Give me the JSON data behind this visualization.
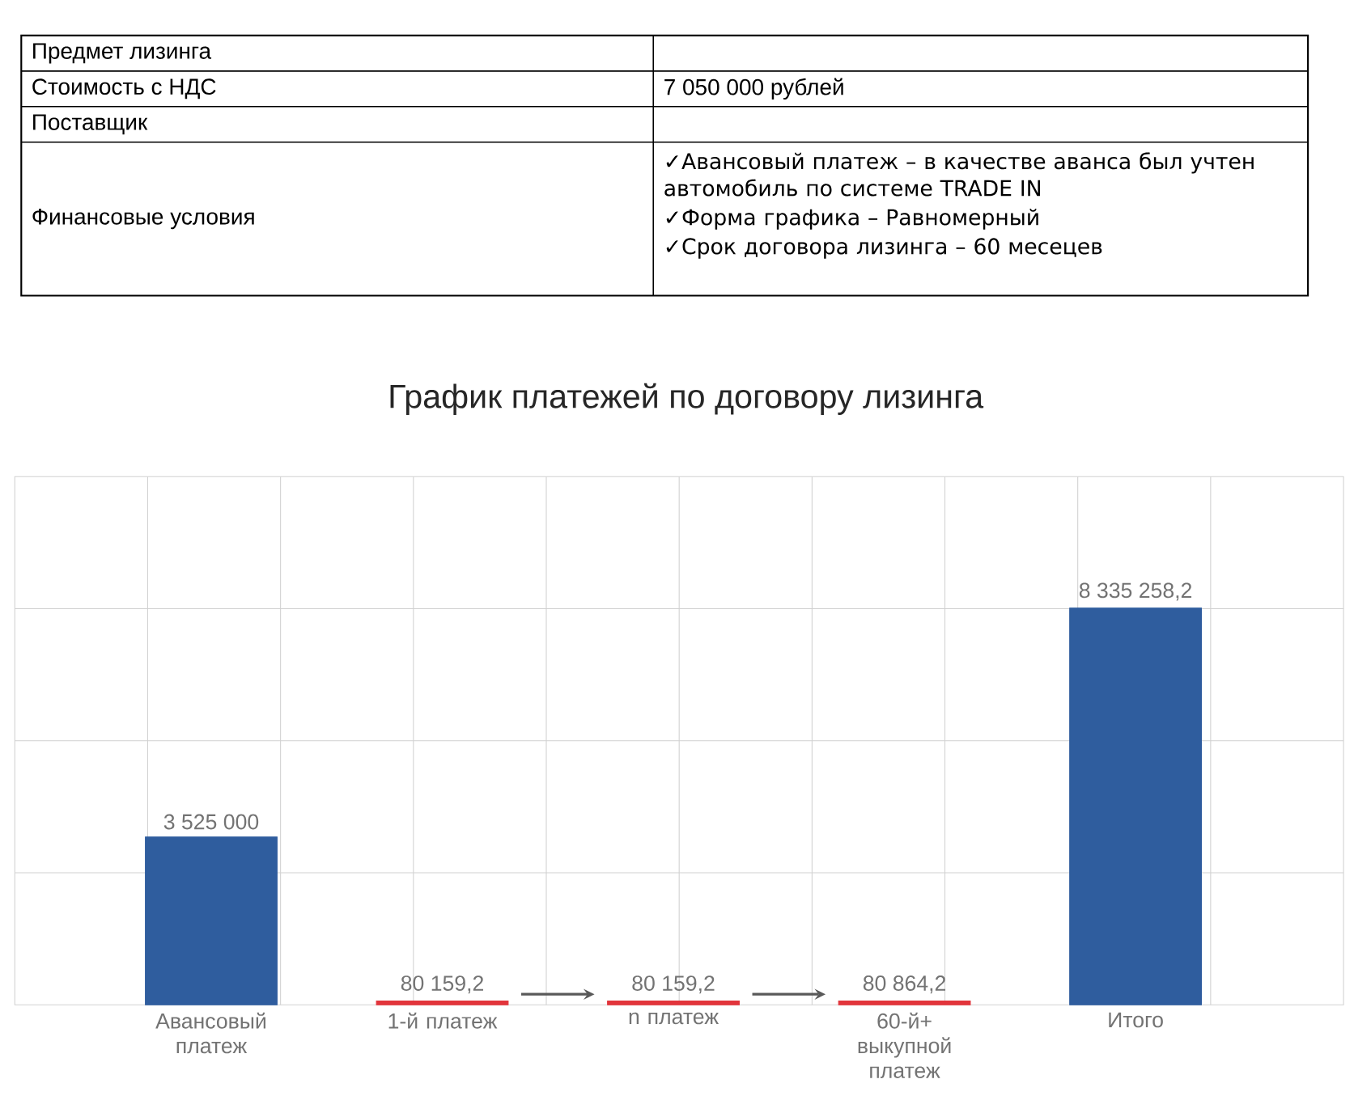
{
  "chart_data": {
    "type": "bar",
    "title": "График платежей по договору лизинга",
    "categories": [
      "Авансовый платеж",
      "1-й платеж",
      "n платеж",
      "60-й+ выкупной платеж",
      "Итого"
    ],
    "values": [
      3525000,
      80159.2,
      80159.2,
      80864.2,
      8335258.2
    ],
    "ylim": [
      0,
      11100000
    ],
    "tick_labels": "x",
    "value_labels": [
      "3 525 000",
      "80 159,2",
      "80 159,2",
      "80 864,2",
      "8 335 258,2"
    ],
    "colors": [
      "#2f5d9e",
      "#e2343b",
      "#e2343b",
      "#e2343b",
      "#2f5d9e"
    ],
    "grid": true,
    "annotations": [
      "Предмет лизинга",
      "Стоимость с НДС",
      "7 050 000 рублей",
      "Поставщик",
      "Финансовые условия",
      "✓Авансовый платеж – в качестве аванса был учтен автомобиль по системе TRADE IN",
      "✓Форма графика – Равномерный",
      "✓Срок договора лизинга – 60 месецев"
    ]
  }
}
